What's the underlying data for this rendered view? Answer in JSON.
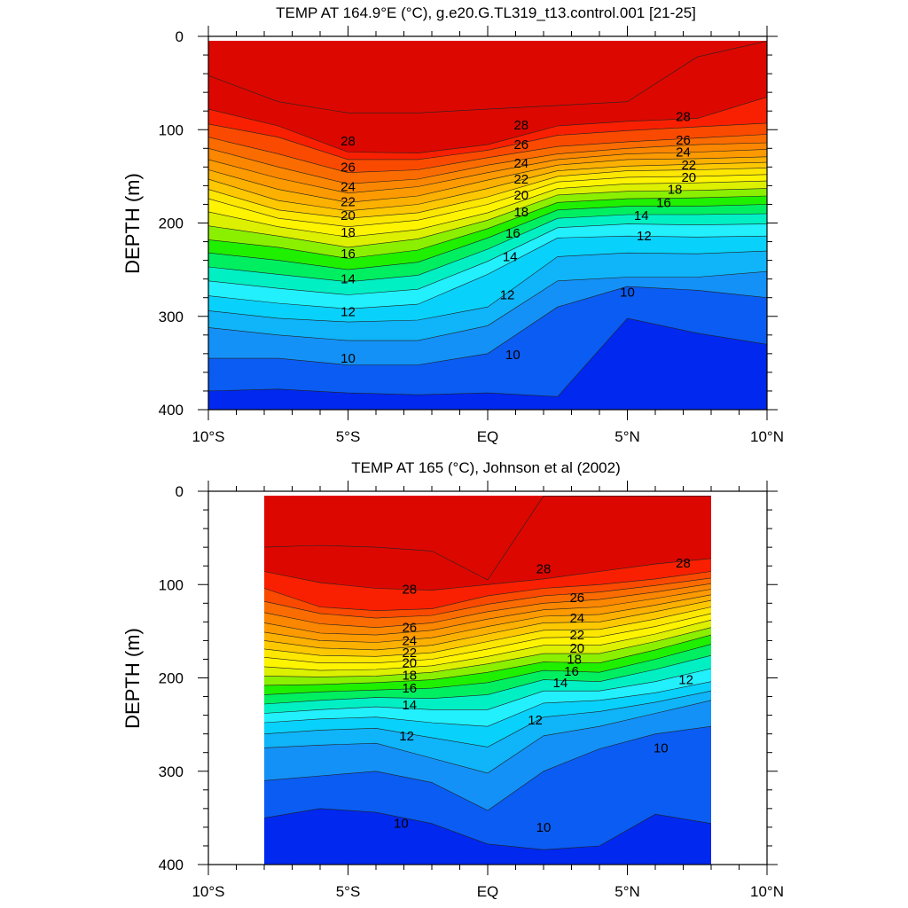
{
  "chart_data": [
    {
      "type": "contour",
      "title": "TEMP AT 164.9°E (°C), g.e20.G.TL319_t13.control.001 [21-25]",
      "ylabel": "DEPTH (m)",
      "xlabel": "",
      "xlim": [
        -10,
        10
      ],
      "ylim": [
        400,
        0
      ],
      "y_inverted": true,
      "x_ticks": [
        -10,
        -5,
        0,
        5,
        10
      ],
      "x_tick_labels": [
        "10°S",
        "5°S",
        "EQ",
        "5°N",
        "10°N"
      ],
      "y_ticks": [
        0,
        100,
        200,
        300,
        400
      ],
      "y_tick_labels": [
        "0",
        "100",
        "200",
        "300",
        "400"
      ],
      "data_extent": [
        -10,
        10
      ],
      "contour_levels": [
        9,
        10,
        11,
        12,
        13,
        14,
        15,
        16,
        17,
        18,
        19,
        20,
        21,
        22,
        23,
        24,
        25,
        26,
        27,
        28,
        29
      ],
      "palette": [
        "#0028ee",
        "#0a5cf2",
        "#1491f6",
        "#10b4f8",
        "#08d2fb",
        "#22f0fd",
        "#00f0c4",
        "#00ef60",
        "#1ef000",
        "#8af000",
        "#dcf000",
        "#fff400",
        "#fde600",
        "#fdc800",
        "#fcb000",
        "#fc9a00",
        "#fb8600",
        "#fb6c00",
        "#fa4a00",
        "#f82000",
        "#dc0800"
      ],
      "isotherm_x": [
        -10,
        -7.5,
        -5,
        -2.5,
        0,
        2.5,
        5,
        7.5,
        10
      ],
      "isotherms": [
        {
          "level": 29,
          "depth": [
            42,
            70,
            82,
            82,
            78,
            74,
            70,
            22,
            0
          ]
        },
        {
          "level": 28,
          "depth": [
            78,
            96,
            124,
            125,
            116,
            96,
            91,
            88,
            65
          ]
        },
        {
          "level": 27,
          "depth": [
            94,
            108,
            132,
            132,
            122,
            106,
            101,
            97,
            93
          ]
        },
        {
          "level": 26,
          "depth": [
            108,
            126,
            146,
            143,
            130,
            118,
            113,
            109,
            105
          ]
        },
        {
          "level": 25,
          "depth": [
            120,
            140,
            158,
            153,
            138,
            126,
            120,
            116,
            114
          ]
        },
        {
          "level": 24,
          "depth": [
            132,
            152,
            168,
            161,
            146,
            132,
            126,
            124,
            121
          ]
        },
        {
          "level": 23,
          "depth": [
            143,
            164,
            178,
            171,
            154,
            138,
            132,
            131,
            129
          ]
        },
        {
          "level": 22,
          "depth": [
            153,
            176,
            187,
            180,
            163,
            144,
            139,
            137,
            135
          ]
        },
        {
          "level": 21,
          "depth": [
            164,
            186,
            195,
            189,
            172,
            150,
            144,
            143,
            141
          ]
        },
        {
          "level": 20,
          "depth": [
            174,
            195,
            204,
            197,
            180,
            156,
            151,
            150,
            148
          ]
        },
        {
          "level": 19,
          "depth": [
            188,
            204,
            215,
            207,
            189,
            163,
            158,
            157,
            155
          ]
        },
        {
          "level": 18,
          "depth": [
            203,
            214,
            226,
            217,
            197,
            170,
            166,
            165,
            163
          ]
        },
        {
          "level": 17,
          "depth": [
            218,
            226,
            238,
            229,
            206,
            178,
            174,
            173,
            171
          ]
        },
        {
          "level": 16,
          "depth": [
            232,
            240,
            250,
            242,
            216,
            186,
            182,
            182,
            180
          ]
        },
        {
          "level": 15,
          "depth": [
            247,
            255,
            263,
            256,
            228,
            195,
            191,
            191,
            190
          ]
        },
        {
          "level": 14,
          "depth": [
            262,
            270,
            277,
            271,
            241,
            205,
            201,
            202,
            201
          ]
        },
        {
          "level": 13,
          "depth": [
            278,
            286,
            292,
            287,
            255,
            216,
            214,
            215,
            214
          ]
        },
        {
          "level": 12,
          "depth": [
            294,
            302,
            306,
            304,
            290,
            236,
            232,
            233,
            230
          ]
        },
        {
          "level": 11,
          "depth": [
            312,
            320,
            326,
            326,
            310,
            262,
            258,
            258,
            252
          ]
        },
        {
          "level": 10,
          "depth": [
            345,
            345,
            352,
            352,
            340,
            290,
            268,
            272,
            280
          ]
        },
        {
          "level": 9,
          "depth": [
            380,
            378,
            382,
            384,
            382,
            386,
            302,
            318,
            330
          ]
        }
      ],
      "contour_labels": [
        {
          "text": "28",
          "x": -5,
          "y": 112
        },
        {
          "text": "26",
          "x": -5,
          "y": 140
        },
        {
          "text": "24",
          "x": -5,
          "y": 161
        },
        {
          "text": "22",
          "x": -5,
          "y": 177
        },
        {
          "text": "20",
          "x": -5,
          "y": 192
        },
        {
          "text": "18",
          "x": -5,
          "y": 210
        },
        {
          "text": "16",
          "x": -5,
          "y": 233
        },
        {
          "text": "14",
          "x": -5,
          "y": 260
        },
        {
          "text": "12",
          "x": -5,
          "y": 295
        },
        {
          "text": "10",
          "x": -5,
          "y": 345
        },
        {
          "text": "28",
          "x": 1.2,
          "y": 95
        },
        {
          "text": "26",
          "x": 1.2,
          "y": 116
        },
        {
          "text": "24",
          "x": 1.2,
          "y": 136
        },
        {
          "text": "22",
          "x": 1.2,
          "y": 153
        },
        {
          "text": "20",
          "x": 1.2,
          "y": 170
        },
        {
          "text": "18",
          "x": 1.2,
          "y": 188
        },
        {
          "text": "16",
          "x": 0.9,
          "y": 211
        },
        {
          "text": "14",
          "x": 0.8,
          "y": 236
        },
        {
          "text": "12",
          "x": 0.7,
          "y": 277
        },
        {
          "text": "10",
          "x": 0.9,
          "y": 341
        },
        {
          "text": "28",
          "x": 7.0,
          "y": 86
        },
        {
          "text": "26",
          "x": 7.0,
          "y": 111
        },
        {
          "text": "24",
          "x": 7.0,
          "y": 124
        },
        {
          "text": "22",
          "x": 7.2,
          "y": 138
        },
        {
          "text": "20",
          "x": 7.2,
          "y": 151
        },
        {
          "text": "18",
          "x": 6.7,
          "y": 164
        },
        {
          "text": "16",
          "x": 6.3,
          "y": 178
        },
        {
          "text": "14",
          "x": 5.5,
          "y": 192
        },
        {
          "text": "12",
          "x": 5.6,
          "y": 214
        },
        {
          "text": "10",
          "x": 5.0,
          "y": 274
        }
      ]
    },
    {
      "type": "contour",
      "title": "TEMP AT 165 (°C), Johnson et al (2002)",
      "ylabel": "DEPTH (m)",
      "xlabel": "",
      "xlim": [
        -10,
        10
      ],
      "ylim": [
        400,
        0
      ],
      "y_inverted": true,
      "x_ticks": [
        -10,
        -5,
        0,
        5,
        10
      ],
      "x_tick_labels": [
        "10°S",
        "5°S",
        "EQ",
        "5°N",
        "10°N"
      ],
      "y_ticks": [
        0,
        100,
        200,
        300,
        400
      ],
      "y_tick_labels": [
        "0",
        "100",
        "200",
        "300",
        "400"
      ],
      "data_extent": [
        -8,
        8
      ],
      "contour_levels": [
        9,
        10,
        11,
        12,
        13,
        14,
        15,
        16,
        17,
        18,
        19,
        20,
        21,
        22,
        23,
        24,
        25,
        26,
        27,
        28,
        29
      ],
      "palette": [
        "#0028ee",
        "#0a5cf2",
        "#1491f6",
        "#10b4f8",
        "#08d2fb",
        "#22f0fd",
        "#00f0c4",
        "#00ef60",
        "#1ef000",
        "#8af000",
        "#dcf000",
        "#fff400",
        "#fde600",
        "#fdc800",
        "#fcb000",
        "#fc9a00",
        "#fb8600",
        "#fb6c00",
        "#fa4a00",
        "#f82000",
        "#dc0800"
      ],
      "isotherm_x": [
        -8,
        -6,
        -4,
        -2,
        0,
        2,
        4,
        6,
        8
      ],
      "isotherms": [
        {
          "level": 29,
          "depth": [
            60,
            58,
            60,
            64,
            95,
            0,
            0,
            0,
            0
          ]
        },
        {
          "level": 28,
          "depth": [
            86,
            98,
            104,
            106,
            100,
            94,
            86,
            78,
            72
          ]
        },
        {
          "level": 27,
          "depth": [
            104,
            124,
            128,
            126,
            112,
            104,
            100,
            94,
            86
          ]
        },
        {
          "level": 26,
          "depth": [
            118,
            131,
            136,
            133,
            121,
            112,
            108,
            101,
            93
          ]
        },
        {
          "level": 25,
          "depth": [
            130,
            142,
            146,
            141,
            129,
            120,
            116,
            108,
            99
          ]
        },
        {
          "level": 24,
          "depth": [
            141,
            152,
            154,
            149,
            137,
            127,
            124,
            115,
            105
          ]
        },
        {
          "level": 23,
          "depth": [
            151,
            160,
            162,
            157,
            145,
            134,
            132,
            122,
            111
          ]
        },
        {
          "level": 22,
          "depth": [
            160,
            168,
            170,
            165,
            153,
            141,
            140,
            129,
            117
          ]
        },
        {
          "level": 21,
          "depth": [
            169,
            176,
            177,
            173,
            161,
            149,
            148,
            137,
            124
          ]
        },
        {
          "level": 20,
          "depth": [
            178,
            184,
            184,
            180,
            169,
            157,
            156,
            145,
            131
          ]
        },
        {
          "level": 19,
          "depth": [
            188,
            192,
            191,
            187,
            177,
            165,
            165,
            153,
            138
          ]
        },
        {
          "level": 18,
          "depth": [
            198,
            199,
            198,
            194,
            185,
            174,
            174,
            161,
            146
          ]
        },
        {
          "level": 17,
          "depth": [
            208,
            207,
            205,
            202,
            194,
            183,
            184,
            170,
            154
          ]
        },
        {
          "level": 16,
          "depth": [
            218,
            215,
            213,
            211,
            205,
            192,
            194,
            180,
            164
          ]
        },
        {
          "level": 15,
          "depth": [
            228,
            224,
            221,
            222,
            218,
            202,
            204,
            191,
            176
          ]
        },
        {
          "level": 14,
          "depth": [
            238,
            234,
            231,
            234,
            234,
            214,
            214,
            204,
            190
          ]
        },
        {
          "level": 13,
          "depth": [
            248,
            244,
            242,
            248,
            252,
            227,
            224,
            216,
            204
          ]
        },
        {
          "level": 12,
          "depth": [
            260,
            256,
            254,
            264,
            274,
            242,
            236,
            226,
            214
          ]
        },
        {
          "level": 11,
          "depth": [
            275,
            272,
            270,
            286,
            302,
            262,
            252,
            238,
            224
          ]
        },
        {
          "level": 10,
          "depth": [
            310,
            305,
            300,
            312,
            342,
            300,
            276,
            260,
            252
          ]
        },
        {
          "level": 9,
          "depth": [
            350,
            340,
            344,
            356,
            378,
            384,
            380,
            346,
            356
          ]
        }
      ],
      "contour_labels": [
        {
          "text": "28",
          "x": -2.8,
          "y": 105
        },
        {
          "text": "26",
          "x": -2.8,
          "y": 146
        },
        {
          "text": "24",
          "x": -2.8,
          "y": 160
        },
        {
          "text": "22",
          "x": -2.8,
          "y": 173
        },
        {
          "text": "20",
          "x": -2.8,
          "y": 184
        },
        {
          "text": "18",
          "x": -2.8,
          "y": 197
        },
        {
          "text": "16",
          "x": -2.8,
          "y": 211
        },
        {
          "text": "14",
          "x": -2.8,
          "y": 229
        },
        {
          "text": "12",
          "x": -2.9,
          "y": 262
        },
        {
          "text": "10",
          "x": -3.1,
          "y": 356
        },
        {
          "text": "28",
          "x": 2.0,
          "y": 83
        },
        {
          "text": "26",
          "x": 3.2,
          "y": 114
        },
        {
          "text": "24",
          "x": 3.2,
          "y": 136
        },
        {
          "text": "22",
          "x": 3.2,
          "y": 154
        },
        {
          "text": "20",
          "x": 3.2,
          "y": 168
        },
        {
          "text": "18",
          "x": 3.1,
          "y": 180
        },
        {
          "text": "16",
          "x": 3.0,
          "y": 193
        },
        {
          "text": "14",
          "x": 2.6,
          "y": 205
        },
        {
          "text": "12",
          "x": 1.7,
          "y": 245
        },
        {
          "text": "10",
          "x": 2.0,
          "y": 360
        },
        {
          "text": "28",
          "x": 7.0,
          "y": 77
        },
        {
          "text": "12",
          "x": 7.1,
          "y": 202
        },
        {
          "text": "10",
          "x": 6.2,
          "y": 275
        }
      ]
    }
  ]
}
